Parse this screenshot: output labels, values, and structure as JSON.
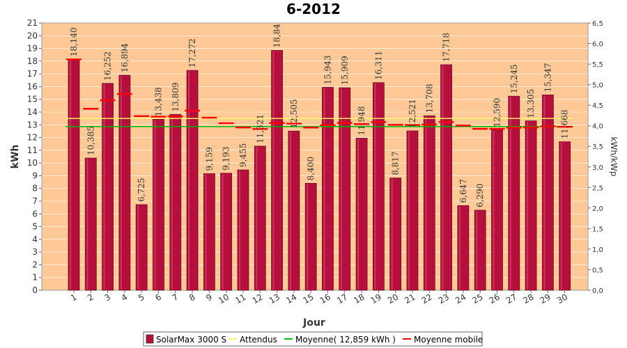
{
  "chart_data": {
    "type": "bar",
    "title": "6-2012",
    "xlabel": "Jour",
    "ylabel": "kWh",
    "y2label": "kWh/kWp",
    "ylim": [
      0,
      21
    ],
    "y2lim": [
      0,
      6.5
    ],
    "categories": [
      "1",
      "2",
      "3",
      "4",
      "5",
      "6",
      "7",
      "8",
      "9",
      "10",
      "11",
      "12",
      "13",
      "14",
      "15",
      "16",
      "17",
      "18",
      "19",
      "20",
      "21",
      "22",
      "23",
      "24",
      "25",
      "26",
      "27",
      "28",
      "29",
      "30"
    ],
    "value_labels": [
      "18,140",
      "10,385",
      "16,252",
      "16,894",
      "6,725",
      "13,438",
      "13,809",
      "17,272",
      "9,159",
      "9,193",
      "9,455",
      "11,321",
      "18,84",
      "12,505",
      "8,400",
      "15,943",
      "15,909",
      "11,948",
      "16,311",
      "8,817",
      "12,521",
      "13,708",
      "17,718",
      "6,647",
      "6,290",
      "12,590",
      "15,245",
      "13,305",
      "15,347",
      "11,668"
    ],
    "series": [
      {
        "name": "SolarMax 3000 S",
        "kind": "bar",
        "color": "#b5103c",
        "values": [
          18.14,
          10.385,
          16.252,
          16.894,
          6.725,
          13.438,
          13.809,
          17.272,
          9.159,
          9.193,
          9.455,
          11.321,
          18.84,
          12.505,
          8.4,
          15.943,
          15.909,
          11.948,
          16.311,
          8.817,
          12.521,
          13.708,
          17.718,
          6.647,
          6.29,
          12.59,
          15.245,
          13.305,
          15.347,
          11.668
        ]
      },
      {
        "name": "Attendus",
        "kind": "line",
        "color": "#ffff66",
        "values": [
          13.5,
          13.5,
          13.5,
          13.5,
          13.5,
          13.5,
          13.5,
          13.5,
          13.5,
          13.5,
          13.5,
          13.5,
          13.5,
          13.5,
          13.5,
          13.5,
          13.5,
          13.5,
          13.5,
          13.5,
          13.5,
          13.5,
          13.5,
          13.5,
          13.5,
          13.5,
          13.5,
          13.5,
          13.5,
          13.5
        ]
      },
      {
        "name": "Moyenne( 12,859 kWh )",
        "kind": "line",
        "color": "#00bb00",
        "values": [
          12.859,
          12.859,
          12.859,
          12.859,
          12.859,
          12.859,
          12.859,
          12.859,
          12.859,
          12.859,
          12.859,
          12.859,
          12.859,
          12.859,
          12.859,
          12.859,
          12.859,
          12.859,
          12.859,
          12.859,
          12.859,
          12.859,
          12.859,
          12.859,
          12.859,
          12.859,
          12.859,
          12.859,
          12.859,
          12.859
        ]
      },
      {
        "name": "Moyenne mobile",
        "kind": "dash",
        "color": "#ff0000",
        "values": [
          18.14,
          14.26,
          14.93,
          15.42,
          13.68,
          13.64,
          13.66,
          14.11,
          13.56,
          13.12,
          12.79,
          12.67,
          13.14,
          13.09,
          12.78,
          12.97,
          13.15,
          13.05,
          13.22,
          13.0,
          12.98,
          13.02,
          13.22,
          12.94,
          12.68,
          12.68,
          12.77,
          12.79,
          12.88,
          12.84
        ]
      }
    ],
    "legend_position": "bottom"
  },
  "legend": [
    {
      "label": "SolarMax 3000 S",
      "color": "#b5103c",
      "type": "box"
    },
    {
      "label": "Attendus",
      "color": "#ffff66",
      "type": "line"
    },
    {
      "label": "Moyenne( 12,859 kWh )",
      "color": "#00bb00",
      "type": "line"
    },
    {
      "label": "Moyenne mobile",
      "color": "#ff0000",
      "type": "line"
    }
  ]
}
